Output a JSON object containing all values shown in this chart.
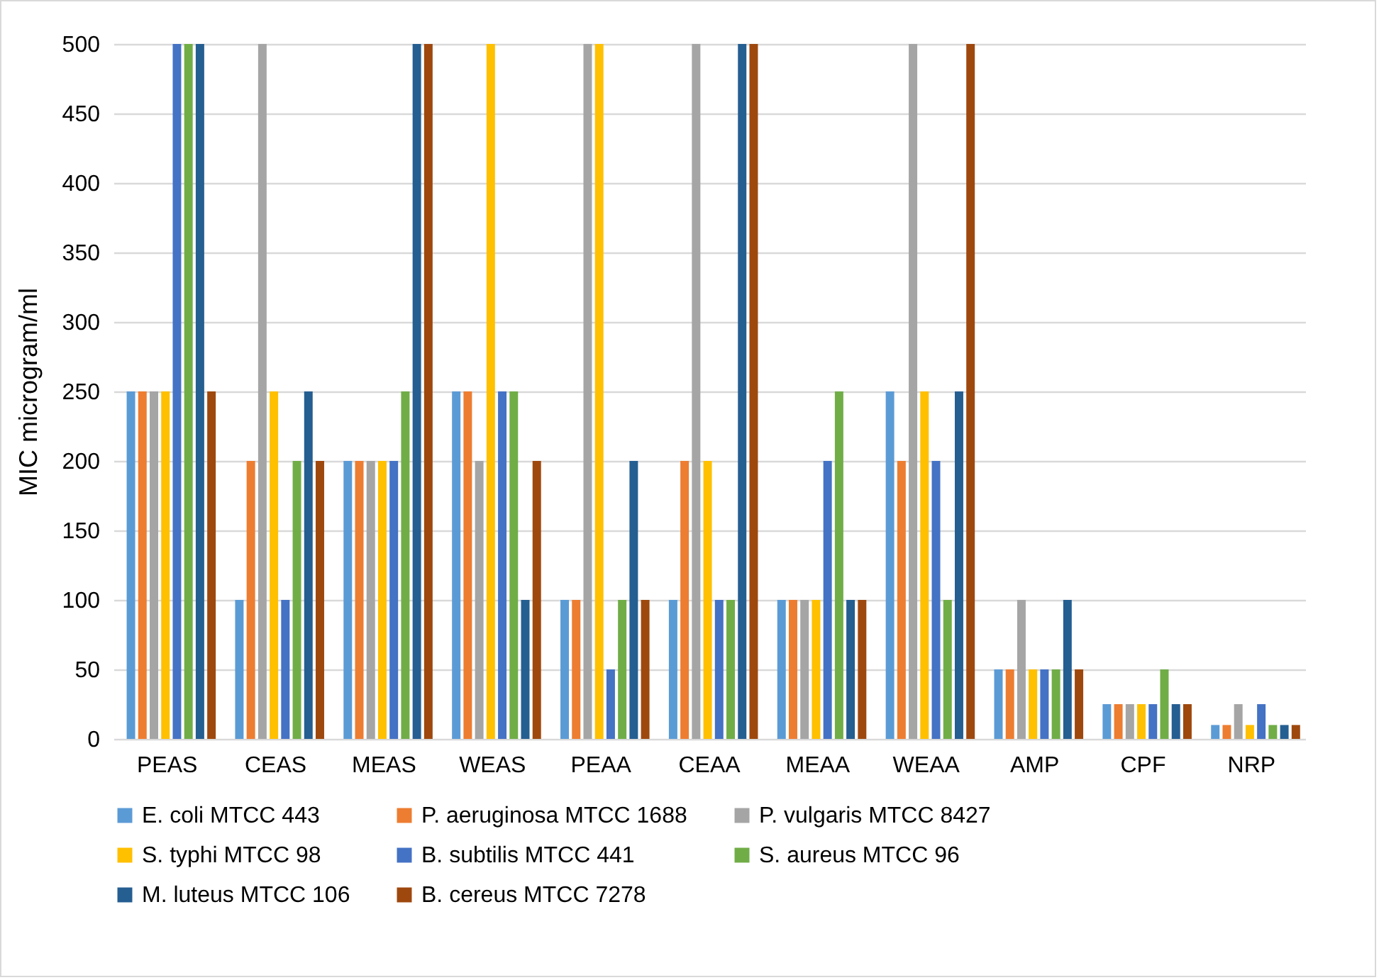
{
  "chart_data": {
    "type": "bar",
    "ylabel": "MIC microgram/ml",
    "categories": [
      "PEAS",
      "CEAS",
      "MEAS",
      "WEAS",
      "PEAA",
      "CEAA",
      "MEAA",
      "WEAA",
      "AMP",
      "CPF",
      "NRP"
    ],
    "series": [
      {
        "name": "E. coli MTCC 443",
        "color": "#5b9bd5",
        "values": [
          250,
          100,
          200,
          250,
          100,
          100,
          100,
          250,
          50,
          25,
          10
        ]
      },
      {
        "name": "P. aeruginosa MTCC 1688",
        "color": "#ed7d31",
        "values": [
          250,
          200,
          200,
          250,
          100,
          200,
          100,
          200,
          50,
          25,
          10
        ]
      },
      {
        "name": "P. vulgaris MTCC 8427",
        "color": "#a5a5a5",
        "values": [
          250,
          500,
          200,
          200,
          500,
          500,
          100,
          500,
          100,
          25,
          25
        ]
      },
      {
        "name": "S. typhi MTCC 98",
        "color": "#ffc000",
        "values": [
          250,
          250,
          200,
          500,
          500,
          200,
          100,
          250,
          50,
          25,
          10
        ]
      },
      {
        "name": "B. subtilis MTCC 441",
        "color": "#4472c4",
        "values": [
          500,
          100,
          200,
          250,
          50,
          100,
          200,
          200,
          50,
          25,
          25
        ]
      },
      {
        "name": "S. aureus MTCC 96",
        "color": "#70ad47",
        "values": [
          500,
          200,
          250,
          250,
          100,
          100,
          250,
          100,
          50,
          50,
          10
        ]
      },
      {
        "name": "M. luteus MTCC 106",
        "color": "#255e91",
        "values": [
          500,
          250,
          500,
          100,
          200,
          500,
          100,
          250,
          100,
          25,
          10
        ]
      },
      {
        "name": "B. cereus MTCC 7278",
        "color": "#9e480e",
        "values": [
          250,
          200,
          500,
          200,
          100,
          500,
          100,
          500,
          50,
          25,
          10
        ]
      }
    ],
    "ylim": [
      0,
      500
    ],
    "yticks": [
      0,
      50,
      100,
      150,
      200,
      250,
      300,
      350,
      400,
      450,
      500
    ],
    "grid": "y",
    "legend": "bottom"
  }
}
